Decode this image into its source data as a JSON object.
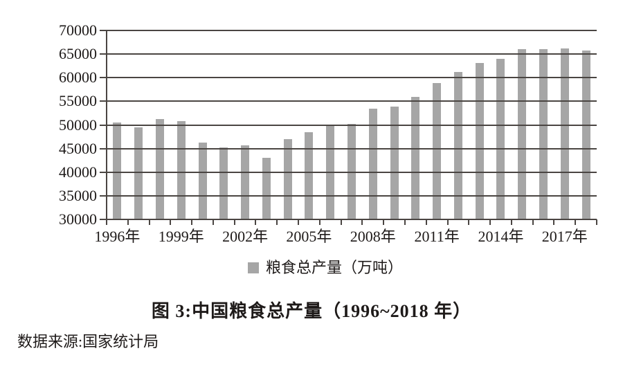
{
  "chart_data": {
    "type": "bar",
    "categories": [
      "1996",
      "1997",
      "1998",
      "1999",
      "2000",
      "2001",
      "2002",
      "2003",
      "2004",
      "2005",
      "2006",
      "2007",
      "2008",
      "2009",
      "2010",
      "2011",
      "2012",
      "2013",
      "2014",
      "2015",
      "2016",
      "2017",
      "2018"
    ],
    "values": [
      50454,
      49417,
      51230,
      50839,
      46218,
      45264,
      45706,
      43070,
      46947,
      48402,
      49804,
      50160,
      53434,
      53941,
      55911,
      58849,
      61223,
      63048,
      63965,
      66060,
      66044,
      66161,
      65789
    ],
    "title": "图 3:中国粮食总产量（1996~2018 年）",
    "legend": "粮食总产量（万吨）",
    "xlabel": "",
    "ylabel": "",
    "ylim": [
      30000,
      70000
    ],
    "yticks": [
      30000,
      35000,
      40000,
      45000,
      50000,
      55000,
      60000,
      65000,
      70000
    ],
    "xtick_labels": [
      "1996年",
      "1999年",
      "2002年",
      "2005年",
      "2008年",
      "2011年",
      "2014年",
      "2017年"
    ],
    "xtick_label_positions": [
      0,
      3,
      6,
      9,
      12,
      15,
      18,
      21
    ],
    "grid": true,
    "gridlines_over_bars": true,
    "legend_position": "bottom",
    "bar_color": "#a6a6a6"
  },
  "colors": {
    "axis_and_grid": "#4a4542",
    "text": "#1e1a19",
    "background": "#ffffff"
  },
  "source_note": "数据来源:国家统计局"
}
